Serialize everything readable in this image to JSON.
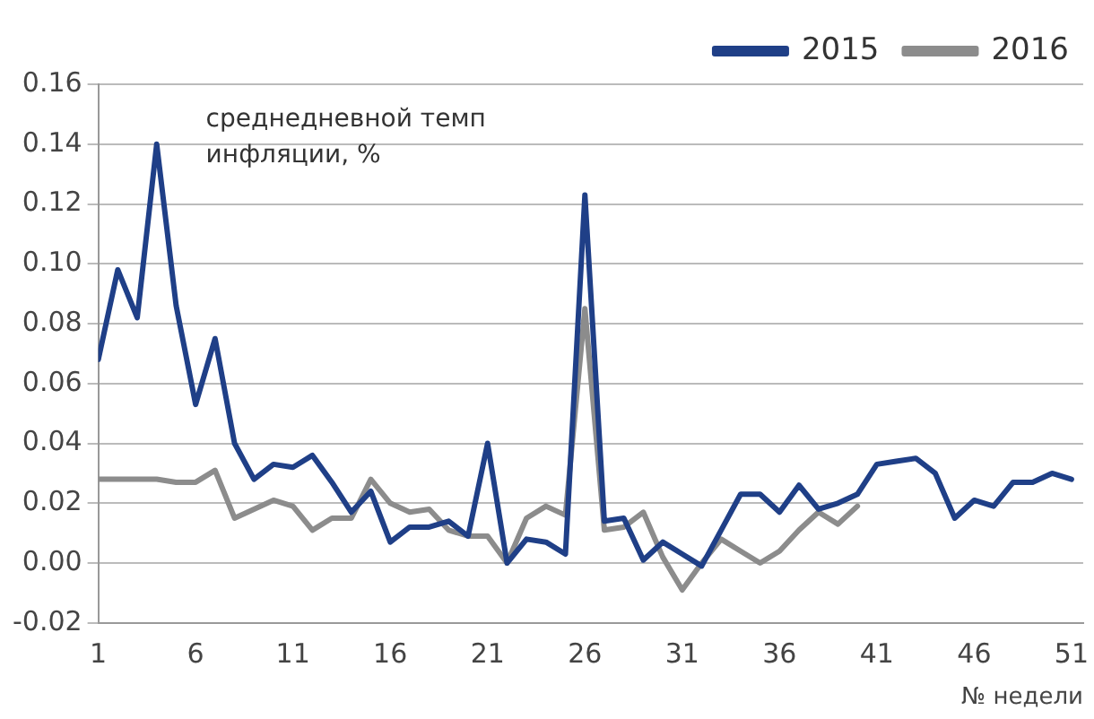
{
  "chart_data": {
    "type": "line",
    "xlabel": "№ недели",
    "annotations": [
      "среднедневной темп\nинфляции, %"
    ],
    "x": [
      1,
      2,
      3,
      4,
      5,
      6,
      7,
      8,
      9,
      10,
      11,
      12,
      13,
      14,
      15,
      16,
      17,
      18,
      19,
      20,
      21,
      22,
      23,
      24,
      25,
      26,
      27,
      28,
      29,
      30,
      31,
      32,
      33,
      34,
      35,
      36,
      37,
      38,
      39,
      40,
      41,
      42,
      43,
      44,
      45,
      46,
      47,
      48,
      49,
      50,
      51
    ],
    "xlim": [
      1,
      51.6
    ],
    "xticks": [
      1,
      6,
      11,
      16,
      21,
      26,
      31,
      36,
      41,
      46,
      51
    ],
    "ylim": [
      -0.02,
      0.16
    ],
    "yticks": [
      {
        "value": -0.02,
        "label": "-0.02"
      },
      {
        "value": 0,
        "label": "0.00"
      },
      {
        "value": 0.02,
        "label": "0.02"
      },
      {
        "value": 0.04,
        "label": "0.04"
      },
      {
        "value": 0.06,
        "label": "0.06"
      },
      {
        "value": 0.08,
        "label": "0.08"
      },
      {
        "value": 0.1,
        "label": "0.10"
      },
      {
        "value": 0.12,
        "label": "0.12"
      },
      {
        "value": 0.14,
        "label": "0.14"
      },
      {
        "value": 0.16,
        "label": "0.16"
      }
    ],
    "grid": "y",
    "legend": "top right",
    "marker": "none",
    "line_style": "solid",
    "series": [
      {
        "name": "2015",
        "color": "#1f3f87",
        "values": [
          0.068,
          0.098,
          0.082,
          0.14,
          0.086,
          0.053,
          0.075,
          0.04,
          0.028,
          0.033,
          0.032,
          0.036,
          0.027,
          0.017,
          0.024,
          0.007,
          0.012,
          0.012,
          0.014,
          0.009,
          0.04,
          0.0,
          0.008,
          0.007,
          0.003,
          0.123,
          0.014,
          0.015,
          0.001,
          0.007,
          0.003,
          -0.001,
          0.011,
          0.023,
          0.023,
          0.017,
          0.026,
          0.018,
          0.02,
          0.023,
          0.033,
          0.034,
          0.035,
          0.03,
          0.015,
          0.021,
          0.019,
          0.027,
          0.027,
          0.03,
          0.028
        ]
      },
      {
        "name": "2016",
        "color": "#8c8c8c",
        "values": [
          0.028,
          0.028,
          0.028,
          0.028,
          0.027,
          0.027,
          0.031,
          0.015,
          0.018,
          0.021,
          0.019,
          0.011,
          0.015,
          0.015,
          0.028,
          0.02,
          0.017,
          0.018,
          0.011,
          0.009,
          0.009,
          0.0,
          0.015,
          0.019,
          0.016,
          0.085,
          0.011,
          0.012,
          0.017,
          0.002,
          -0.009,
          0.0,
          0.008,
          0.004,
          0.0,
          0.004,
          0.011,
          0.017,
          0.013,
          0.019,
          null,
          null,
          null,
          null,
          null,
          null,
          null,
          null,
          null,
          null,
          null
        ]
      }
    ]
  }
}
